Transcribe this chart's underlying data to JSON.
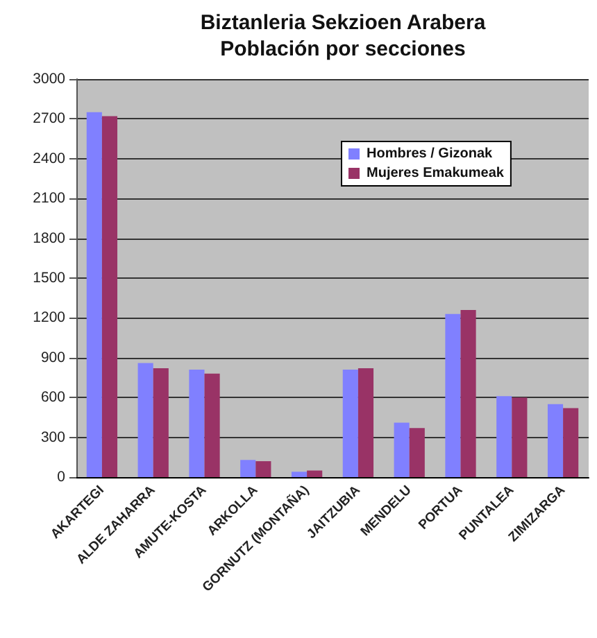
{
  "chart_data": {
    "type": "bar",
    "title": "Biztanleria Sekzioen Arabera",
    "subtitle": "Población por secciones",
    "categories": [
      "AKARTEGI",
      "ALDE ZAHARRA",
      "AMUTE-KOSTA",
      "ARKOLLA",
      "GORNUTZ (MONTAÑA)",
      "JAITZUBIA",
      "MENDELU",
      "PORTUA",
      "PUNTALEA",
      "ZIMIZARGA"
    ],
    "series": [
      {
        "name": "Hombres / Gizonak",
        "color": "#8080ff",
        "values": [
          2750,
          860,
          810,
          130,
          40,
          810,
          410,
          1230,
          610,
          550
        ]
      },
      {
        "name": "Mujeres Emakumeak",
        "color": "#993366",
        "values": [
          2720,
          820,
          780,
          120,
          50,
          820,
          370,
          1260,
          600,
          520
        ]
      }
    ],
    "ylim": [
      0,
      3000
    ],
    "yticks": [
      0,
      300,
      600,
      900,
      1200,
      1500,
      1800,
      2100,
      2400,
      2700,
      3000
    ],
    "grid": "y",
    "legend": "top right"
  }
}
